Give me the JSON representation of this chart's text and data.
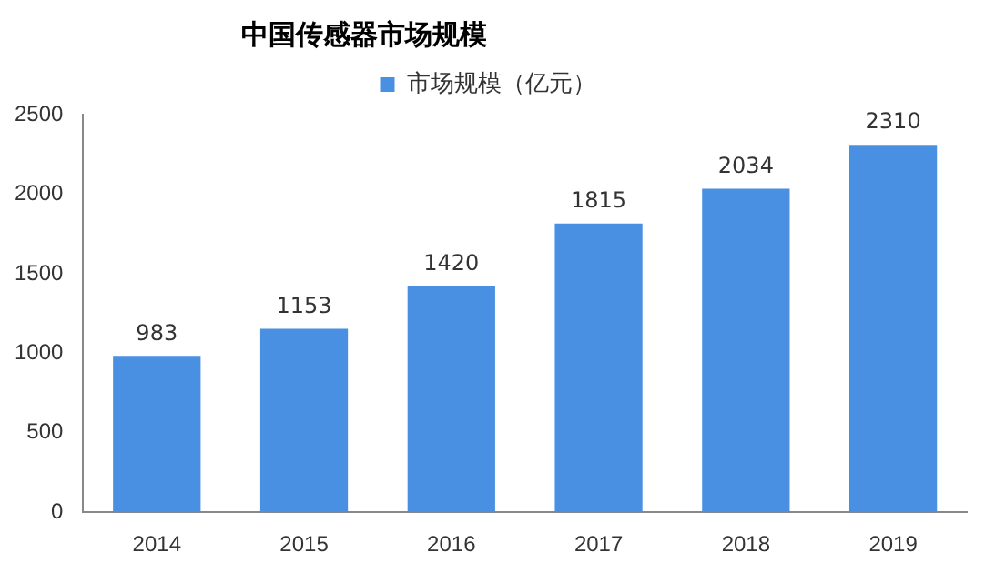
{
  "chart_data": {
    "type": "bar",
    "title": "中国传感器市场规模",
    "categories": [
      "2014",
      "2015",
      "2016",
      "2017",
      "2018",
      "2019"
    ],
    "series": [
      {
        "name": "市场规模（亿元）",
        "color": "#4a90e2",
        "values": [
          983,
          1153,
          1420,
          1815,
          2034,
          2310
        ]
      }
    ],
    "ylim": [
      0,
      2500
    ],
    "yticks": [
      0,
      500,
      1000,
      1500,
      2000,
      2500
    ],
    "grid": false,
    "legend": "top",
    "data_labels": true
  }
}
